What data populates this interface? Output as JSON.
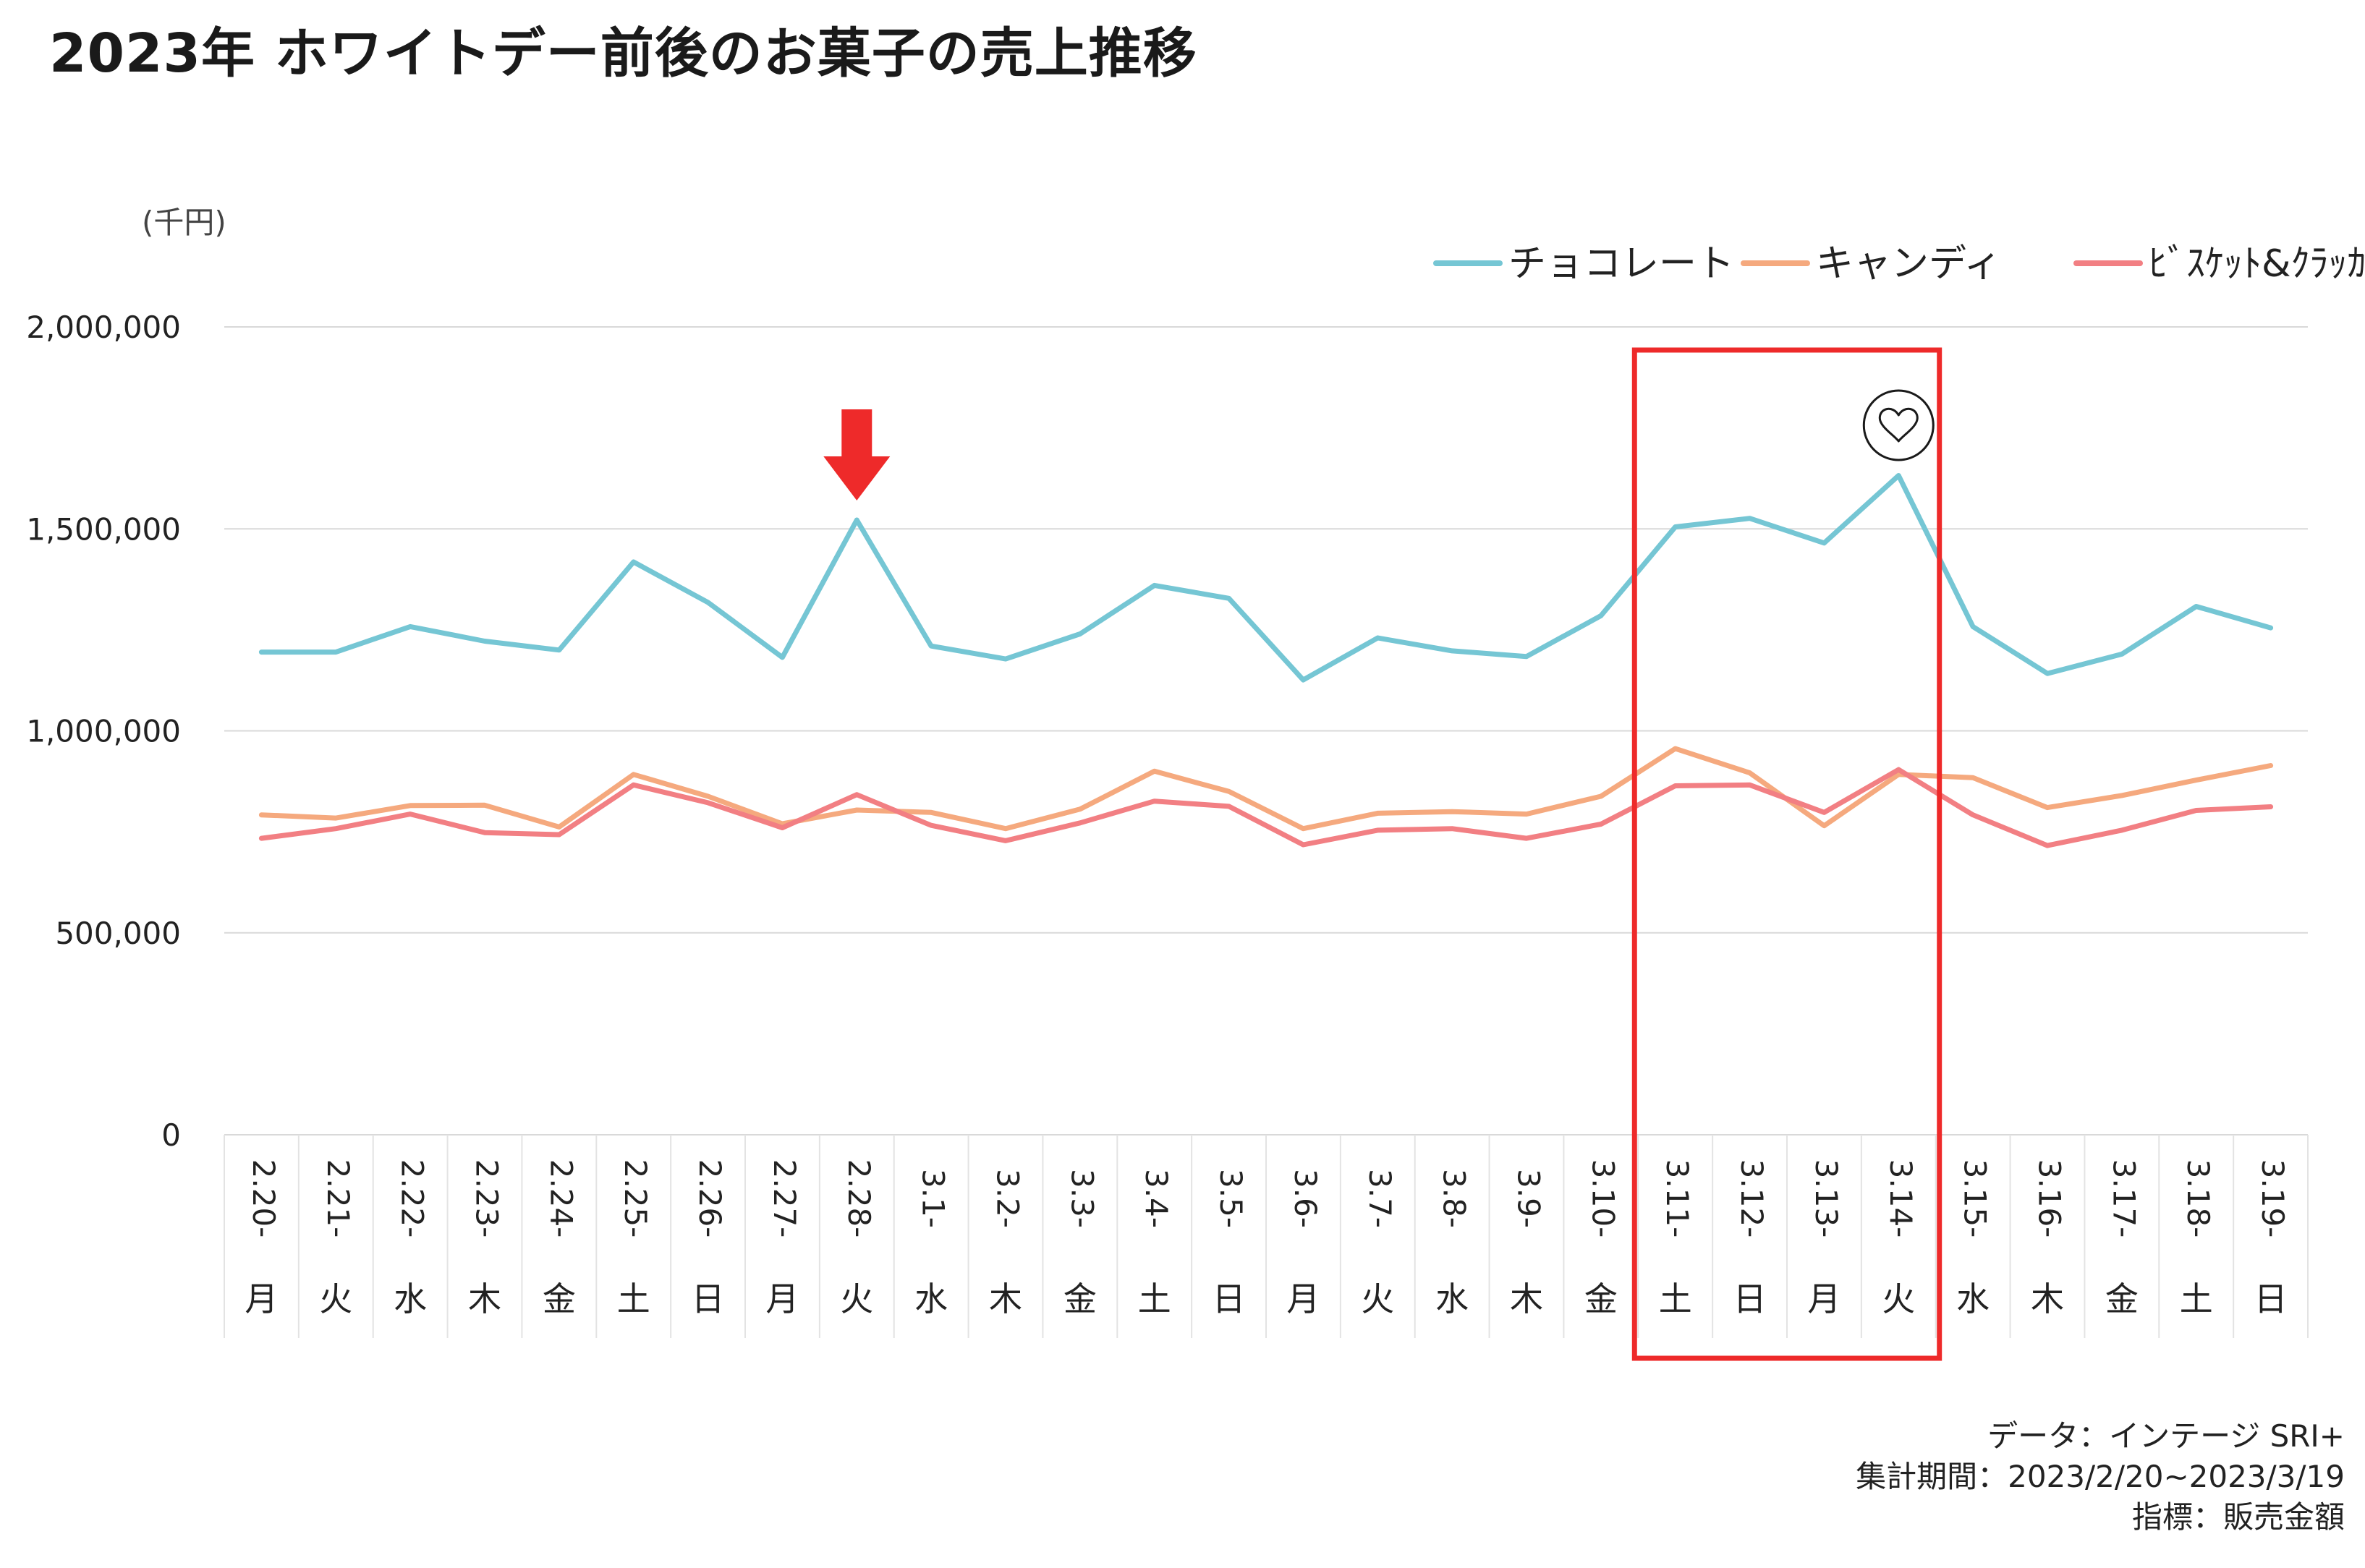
{
  "title": "2023年 ホワイトデー前後のお菓子の売上推移",
  "footer": {
    "source": "データ：インテージ SRI+",
    "period": "集計期間：2023/2/20~2023/3/19",
    "metric": "指標：販売金額"
  },
  "colors": {
    "chocolate": "#75C6D4",
    "candy": "#F5A97E",
    "biscuit": "#F27F83",
    "highlight_box": "#EE2A2A",
    "arrow": "#EE2A2A",
    "grid": "#D9D9D9"
  },
  "chart_data": {
    "type": "line",
    "ylabel": "(千円)",
    "ylim": [
      0,
      2000000
    ],
    "yticks": [
      "0",
      "500,000",
      "1,000,000",
      "1,500,000",
      "2,000,000"
    ],
    "grid": true,
    "legend_position": "top-right",
    "categories": [
      "2.20-",
      "2.21-",
      "2.22-",
      "2.23-",
      "2.24-",
      "2.25-",
      "2.26-",
      "2.27-",
      "2.28-",
      "3.1-",
      "3.2-",
      "3.3-",
      "3.4-",
      "3.5-",
      "3.6-",
      "3.7-",
      "3.8-",
      "3.9-",
      "3.10-",
      "3.11-",
      "3.12-",
      "3.13-",
      "3.14-",
      "3.15-",
      "3.16-",
      "3.17-",
      "3.18-",
      "3.19-"
    ],
    "weekdays": [
      "月",
      "火",
      "水",
      "木",
      "金",
      "土",
      "日",
      "月",
      "火",
      "水",
      "木",
      "金",
      "土",
      "日",
      "月",
      "火",
      "水",
      "木",
      "金",
      "土",
      "日",
      "月",
      "火",
      "水",
      "木",
      "金",
      "土",
      "日"
    ],
    "series": [
      {
        "name": "チョコレート",
        "color": "#75C6D4",
        "values": [
          1195000,
          1195000,
          1258000,
          1222000,
          1200000,
          1418000,
          1318000,
          1182000,
          1522000,
          1210000,
          1178000,
          1240000,
          1360000,
          1328000,
          1126000,
          1230000,
          1198000,
          1184000,
          1285000,
          1505000,
          1526000,
          1465000,
          1632000,
          1258000,
          1142000,
          1190000,
          1308000,
          1255000
        ]
      },
      {
        "name": "キャンディ",
        "color": "#F5A97E",
        "values": [
          792000,
          784000,
          815000,
          816000,
          762000,
          892000,
          838000,
          770000,
          804000,
          798000,
          758000,
          806000,
          900000,
          850000,
          758000,
          796000,
          800000,
          794000,
          838000,
          956000,
          896000,
          765000,
          892000,
          884000,
          810000,
          840000,
          878000,
          914000
        ]
      },
      {
        "name": "ﾋﾞｽｹｯﾄ&ｸﾗｯｶｰ",
        "color": "#F27F83",
        "values": [
          734000,
          758000,
          794000,
          748000,
          743000,
          866000,
          822000,
          760000,
          842000,
          766000,
          728000,
          772000,
          826000,
          813000,
          718000,
          754000,
          758000,
          734000,
          769000,
          864000,
          866000,
          798000,
          904000,
          792000,
          716000,
          754000,
          803000,
          812000
        ]
      }
    ],
    "annotations": [
      {
        "type": "arrow",
        "category": "2.28-"
      },
      {
        "type": "heart",
        "category": "3.14-"
      },
      {
        "type": "highlight_box",
        "from": "3.11-",
        "to": "3.14-"
      }
    ]
  }
}
